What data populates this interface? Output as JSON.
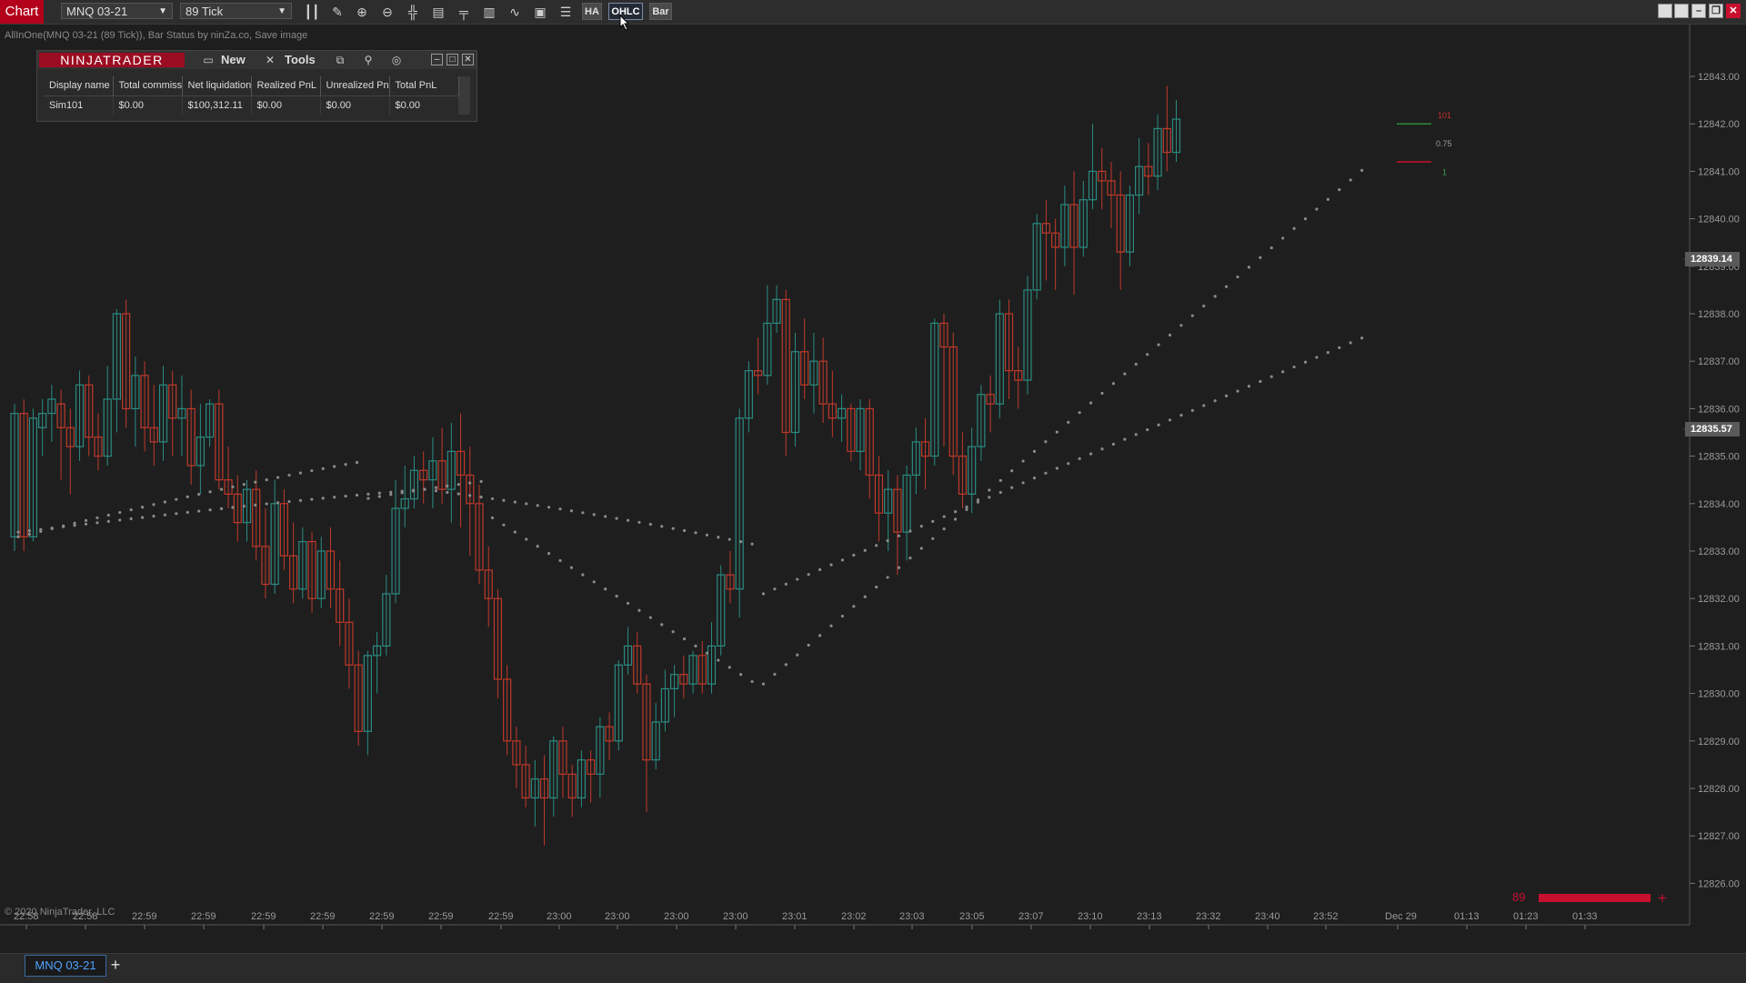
{
  "toolbar": {
    "chart_tab": "Chart",
    "instrument": "MNQ 03-21",
    "interval": "89 Tick",
    "icons": [
      "bars-icon",
      "pencil-icon",
      "zoom-in-icon",
      "zoom-out-icon",
      "crosshair-icon",
      "properties-icon",
      "chart-trader-icon",
      "data-box-icon",
      "strategies-icon",
      "indicators-icon",
      "list-icon"
    ],
    "btn_ha": "HA",
    "btn_ohlc": "OHLC",
    "btn_bar": "Bar"
  },
  "chart": {
    "indicator_label": "AllInOne(MNQ 03-21 (89 Tick)), Bar Status by ninZa.co, Save image",
    "copyright": "© 2020 NinjaTrader, LLC",
    "y_labels": [
      "12843.00",
      "12842.00",
      "12841.00",
      "12840.00",
      "12839.00",
      "12838.00",
      "12837.00",
      "12836.00",
      "12835.00",
      "12834.00",
      "12833.00",
      "12832.00",
      "12831.00",
      "12830.00",
      "12829.00",
      "12828.00",
      "12827.00",
      "12826.00"
    ],
    "x_labels": [
      "22:58",
      "22:58",
      "22:59",
      "22:59",
      "22:59",
      "22:59",
      "22:59",
      "22:59",
      "22:59",
      "23:00",
      "23:00",
      "23:00",
      "23:00",
      "23:01",
      "23:02",
      "23:03",
      "23:05",
      "23:07",
      "23:10",
      "23:13",
      "23:32",
      "23:40",
      "23:52",
      "Dec 29",
      "01:13",
      "01:23",
      "01:33"
    ],
    "last_price": "12839.14",
    "second_price": "12835.57",
    "bar_counter": "89",
    "status_markers": {
      "top": "101",
      "mid": "0.75",
      "bottom": "1"
    },
    "colors": {
      "up": "#2a8c82",
      "down": "#c0392b",
      "background": "#1e1e1e"
    }
  },
  "account_panel": {
    "logo": "NINJATRADER",
    "new_label": "New",
    "tools_label": "Tools",
    "columns": [
      "Display name",
      "Total commiss",
      "Net liquidation",
      "Realized PnL",
      "Unrealized Pn",
      "Total PnL"
    ],
    "rows": [
      [
        "Sim101",
        "$0.00",
        "$100,312.11",
        "$0.00",
        "$0.00",
        "$0.00"
      ]
    ]
  },
  "tabs": {
    "active": "MNQ 03-21",
    "add": "+"
  }
}
